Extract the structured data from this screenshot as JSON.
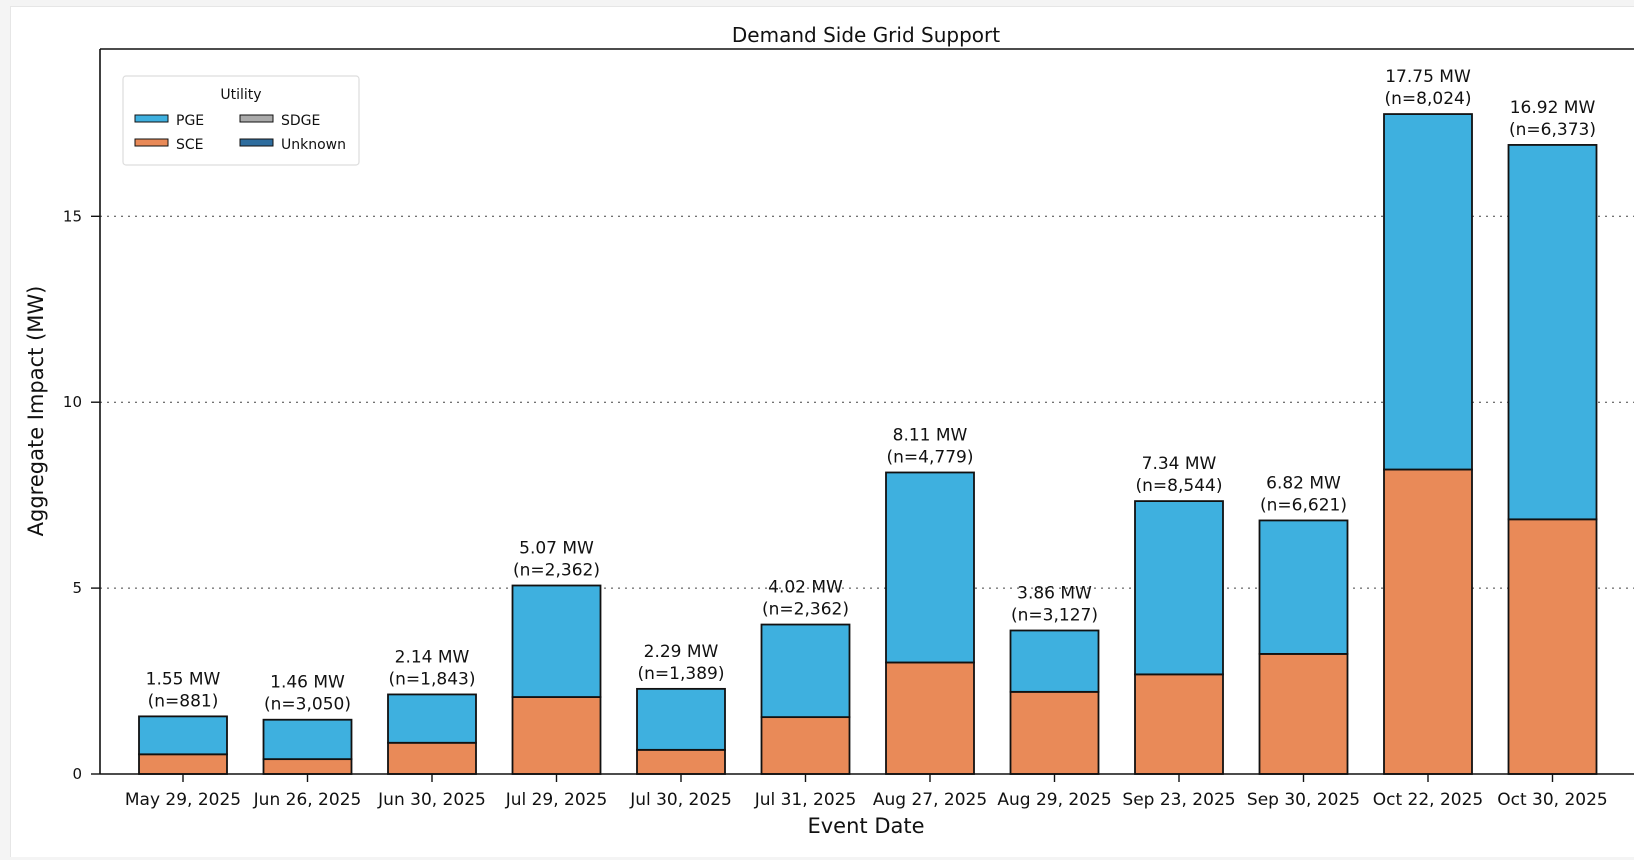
{
  "chart_data": {
    "type": "bar",
    "stacked": true,
    "title": "Demand Side Grid Support",
    "xlabel": "Event Date",
    "ylabel": "Aggregate Impact (MW)",
    "ylim": [
      0,
      19.5
    ],
    "yticks": [
      0,
      5,
      10,
      15
    ],
    "grid": "y dotted",
    "legend": {
      "title": "Utility",
      "placement": "top-left",
      "entries": [
        {
          "name": "PGE",
          "color": "#3eb0df"
        },
        {
          "name": "SDGE",
          "color": "#aaaaaa"
        },
        {
          "name": "SCE",
          "color": "#e98a58"
        },
        {
          "name": "Unknown",
          "color": "#2e6d9e"
        }
      ]
    },
    "categories": [
      "May 29, 2025",
      "Jun 26, 2025",
      "Jun 30, 2025",
      "Jul 29, 2025",
      "Jul 30, 2025",
      "Jul 31, 2025",
      "Aug 27, 2025",
      "Aug 29, 2025",
      "Sep 23, 2025",
      "Sep 30, 2025",
      "Oct 22, 2025",
      "Oct 30, 2025"
    ],
    "series": [
      {
        "name": "SCE",
        "color": "#e98a58",
        "values": [
          0.53,
          0.4,
          0.84,
          2.07,
          0.65,
          1.53,
          3.0,
          2.21,
          2.68,
          3.23,
          8.19,
          6.85
        ]
      },
      {
        "name": "PGE",
        "color": "#3eb0df",
        "values": [
          1.02,
          1.06,
          1.3,
          3.0,
          1.64,
          2.49,
          5.11,
          1.65,
          4.66,
          3.59,
          9.56,
          10.07
        ]
      }
    ],
    "bar_labels": [
      {
        "total": "1.55 MW",
        "n": "(n=881)"
      },
      {
        "total": "1.46 MW",
        "n": "(n=3,050)"
      },
      {
        "total": "2.14 MW",
        "n": "(n=1,843)"
      },
      {
        "total": "5.07 MW",
        "n": "(n=2,362)"
      },
      {
        "total": "2.29 MW",
        "n": "(n=1,389)"
      },
      {
        "total": "4.02 MW",
        "n": "(n=2,362)"
      },
      {
        "total": "8.11 MW",
        "n": "(n=4,779)"
      },
      {
        "total": "3.86 MW",
        "n": "(n=3,127)"
      },
      {
        "total": "7.34 MW",
        "n": "(n=8,544)"
      },
      {
        "total": "6.82 MW",
        "n": "(n=6,621)"
      },
      {
        "total": "17.75 MW",
        "n": "(n=8,024)"
      },
      {
        "total": "16.92 MW",
        "n": "(n=6,373)"
      }
    ]
  }
}
